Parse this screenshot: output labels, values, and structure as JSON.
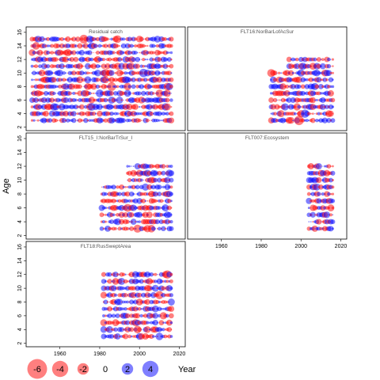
{
  "chart_data": {
    "type": "scatter",
    "subtype": "bubble-residual-grid",
    "ylabel": "Age",
    "legend_title": "Year",
    "colors": {
      "positive": "#0000ff",
      "negative": "#ff0000"
    },
    "x_ticks": [
      1960,
      1980,
      2000,
      2020
    ],
    "y_ticks": [
      2,
      4,
      6,
      8,
      10,
      12,
      14,
      16
    ],
    "xlim": [
      1943,
      2023
    ],
    "ylim": [
      1.5,
      16.8
    ],
    "legend_values": [
      -6,
      -4,
      -2,
      0,
      2,
      4
    ],
    "panels": [
      {
        "title": "Residual catch",
        "years": [
          1946,
          2016
        ],
        "ages_by_year": [
          [
            1946,
            2016,
            3,
            15
          ]
        ]
      },
      {
        "title": "FLT16:NorBarLofAcSur",
        "years": [
          1985,
          2016
        ],
        "ages_by_year": [
          [
            1985,
            1993,
            3,
            10
          ],
          [
            1994,
            2016,
            3,
            12
          ]
        ]
      },
      {
        "title": "FLT15_I:NorBarTrSur_I",
        "years": [
          1981,
          2016
        ],
        "ages_by_year": [
          [
            1981,
            1993,
            3,
            9
          ],
          [
            1994,
            2016,
            3,
            12
          ]
        ]
      },
      {
        "title": "FLT007:Ecosystem",
        "years": [
          2004,
          2016
        ],
        "ages_by_year": [
          [
            2004,
            2016,
            3,
            12
          ]
        ]
      },
      {
        "title": "FLT18:RusSweptArea",
        "years": [
          1982,
          2016
        ],
        "ages_by_year": [
          [
            1982,
            2016,
            3,
            12
          ]
        ]
      }
    ]
  }
}
